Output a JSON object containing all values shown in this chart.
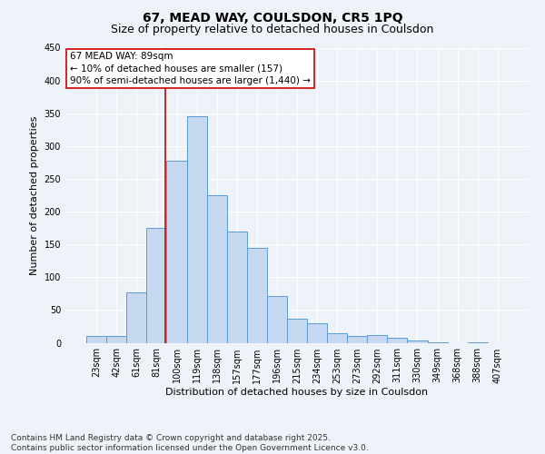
{
  "title": "67, MEAD WAY, COULSDON, CR5 1PQ",
  "subtitle": "Size of property relative to detached houses in Coulsdon",
  "xlabel": "Distribution of detached houses by size in Coulsdon",
  "ylabel": "Number of detached properties",
  "categories": [
    "23sqm",
    "42sqm",
    "61sqm",
    "81sqm",
    "100sqm",
    "119sqm",
    "138sqm",
    "157sqm",
    "177sqm",
    "196sqm",
    "215sqm",
    "234sqm",
    "253sqm",
    "273sqm",
    "292sqm",
    "311sqm",
    "330sqm",
    "349sqm",
    "368sqm",
    "388sqm",
    "407sqm"
  ],
  "values": [
    10,
    10,
    77,
    175,
    278,
    345,
    225,
    170,
    145,
    72,
    37,
    30,
    15,
    11,
    12,
    7,
    3,
    1,
    0,
    1,
    0
  ],
  "bar_color": "#c5d8f0",
  "bar_edge_color": "#5b9bd5",
  "bar_width": 1.0,
  "vline_color": "#cc0000",
  "annotation_line1": "67 MEAD WAY: 89sqm",
  "annotation_line2": "← 10% of detached houses are smaller (157)",
  "annotation_line3": "90% of semi-detached houses are larger (1,440) →",
  "annotation_box_color": "#ffffff",
  "annotation_box_edge": "#cc0000",
  "ylim": [
    0,
    450
  ],
  "yticks": [
    0,
    50,
    100,
    150,
    200,
    250,
    300,
    350,
    400,
    450
  ],
  "bg_color": "#eef2f9",
  "grid_color": "#ffffff",
  "footer_line1": "Contains HM Land Registry data © Crown copyright and database right 2025.",
  "footer_line2": "Contains public sector information licensed under the Open Government Licence v3.0.",
  "title_fontsize": 10,
  "subtitle_fontsize": 9,
  "xlabel_fontsize": 8,
  "ylabel_fontsize": 8,
  "tick_fontsize": 7,
  "footer_fontsize": 6.5,
  "annotation_fontsize": 7.5
}
